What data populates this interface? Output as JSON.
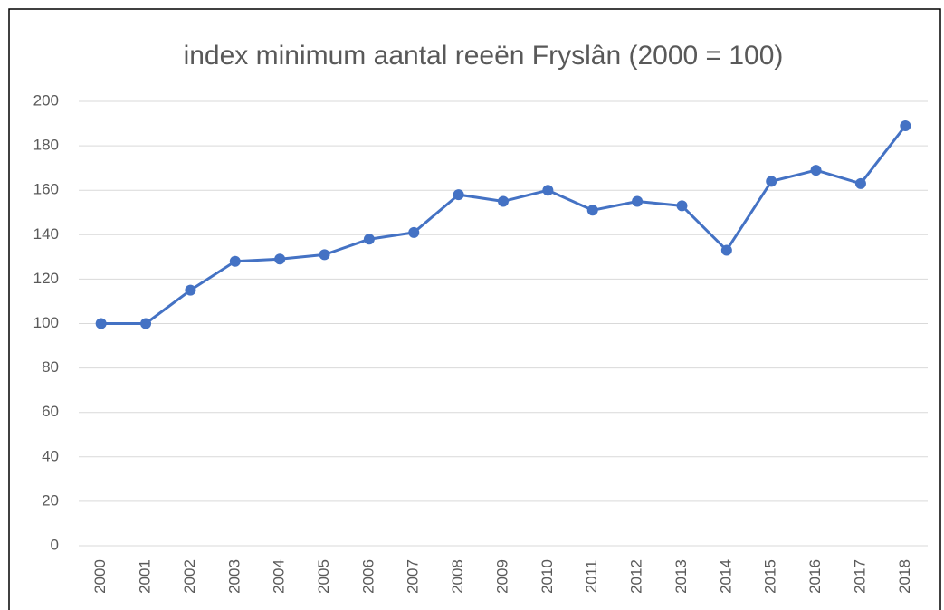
{
  "chart_data": {
    "type": "line",
    "title": "index minimum aantal reeën Fryslân (2000 = 100)",
    "categories": [
      "2000",
      "2001",
      "2002",
      "2003",
      "2004",
      "2005",
      "2006",
      "2007",
      "2008",
      "2009",
      "2010",
      "2011",
      "2012",
      "2013",
      "2014",
      "2015",
      "2016",
      "2017",
      "2018"
    ],
    "values": [
      100,
      100,
      115,
      128,
      129,
      131,
      138,
      141,
      158,
      155,
      160,
      151,
      155,
      153,
      133,
      164,
      169,
      163,
      189
    ],
    "color": "#4472c4",
    "ylim": [
      0,
      200
    ],
    "yticks": [
      0,
      20,
      40,
      60,
      80,
      100,
      120,
      140,
      160,
      180,
      200
    ],
    "grid": true
  }
}
